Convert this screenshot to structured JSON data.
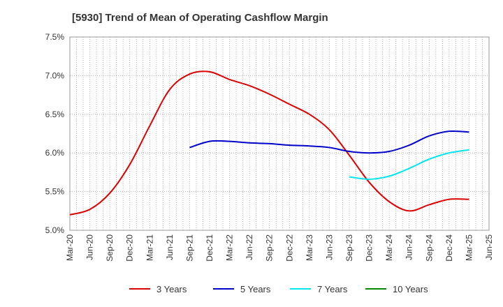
{
  "chart_data": {
    "type": "line",
    "title": "[5930]  Trend of Mean of Operating Cashflow Margin",
    "xlabel": "",
    "ylabel": "",
    "x_ticks": [
      "Mar-20",
      "Jun-20",
      "Sep-20",
      "Dec-20",
      "Mar-21",
      "Jun-21",
      "Sep-21",
      "Dec-21",
      "Mar-22",
      "Jun-22",
      "Sep-22",
      "Dec-22",
      "Mar-23",
      "Jun-23",
      "Sep-23",
      "Dec-23",
      "Mar-24",
      "Jun-24",
      "Sep-24",
      "Dec-24",
      "Mar-25",
      "Jun-25"
    ],
    "y_ticks": [
      "5.0%",
      "5.5%",
      "6.0%",
      "6.5%",
      "7.0%",
      "7.5%"
    ],
    "ylim": [
      5.0,
      7.5
    ],
    "grid": true,
    "legend_position": "bottom",
    "series": [
      {
        "name": "3 Years",
        "color": "#dd0000",
        "points": [
          [
            "Mar-20",
            5.2
          ],
          [
            "Jun-20",
            5.27
          ],
          [
            "Sep-20",
            5.48
          ],
          [
            "Dec-20",
            5.85
          ],
          [
            "Mar-21",
            6.35
          ],
          [
            "Jun-21",
            6.82
          ],
          [
            "Sep-21",
            7.02
          ],
          [
            "Dec-21",
            7.05
          ],
          [
            "Mar-22",
            6.95
          ],
          [
            "Jun-22",
            6.87
          ],
          [
            "Sep-22",
            6.76
          ],
          [
            "Dec-22",
            6.63
          ],
          [
            "Mar-23",
            6.5
          ],
          [
            "Jun-23",
            6.3
          ],
          [
            "Sep-23",
            5.97
          ],
          [
            "Dec-23",
            5.62
          ],
          [
            "Mar-24",
            5.37
          ],
          [
            "Jun-24",
            5.25
          ],
          [
            "Sep-24",
            5.33
          ],
          [
            "Dec-24",
            5.4
          ],
          [
            "Mar-25",
            5.4
          ]
        ]
      },
      {
        "name": "5 Years",
        "color": "#0000cc",
        "points": [
          [
            "Sep-21",
            6.07
          ],
          [
            "Dec-21",
            6.15
          ],
          [
            "Mar-22",
            6.15
          ],
          [
            "Jun-22",
            6.13
          ],
          [
            "Sep-22",
            6.12
          ],
          [
            "Dec-22",
            6.1
          ],
          [
            "Mar-23",
            6.09
          ],
          [
            "Jun-23",
            6.07
          ],
          [
            "Sep-23",
            6.02
          ],
          [
            "Dec-23",
            6.0
          ],
          [
            "Mar-24",
            6.02
          ],
          [
            "Jun-24",
            6.1
          ],
          [
            "Sep-24",
            6.22
          ],
          [
            "Dec-24",
            6.28
          ],
          [
            "Mar-25",
            6.27
          ]
        ]
      },
      {
        "name": "7 Years",
        "color": "#00e5ee",
        "points": [
          [
            "Sep-23",
            5.69
          ],
          [
            "Dec-23",
            5.66
          ],
          [
            "Mar-24",
            5.7
          ],
          [
            "Jun-24",
            5.8
          ],
          [
            "Sep-24",
            5.92
          ],
          [
            "Dec-24",
            6.0
          ],
          [
            "Mar-25",
            6.04
          ]
        ]
      },
      {
        "name": "10 Years",
        "color": "#008800",
        "points": []
      }
    ]
  }
}
